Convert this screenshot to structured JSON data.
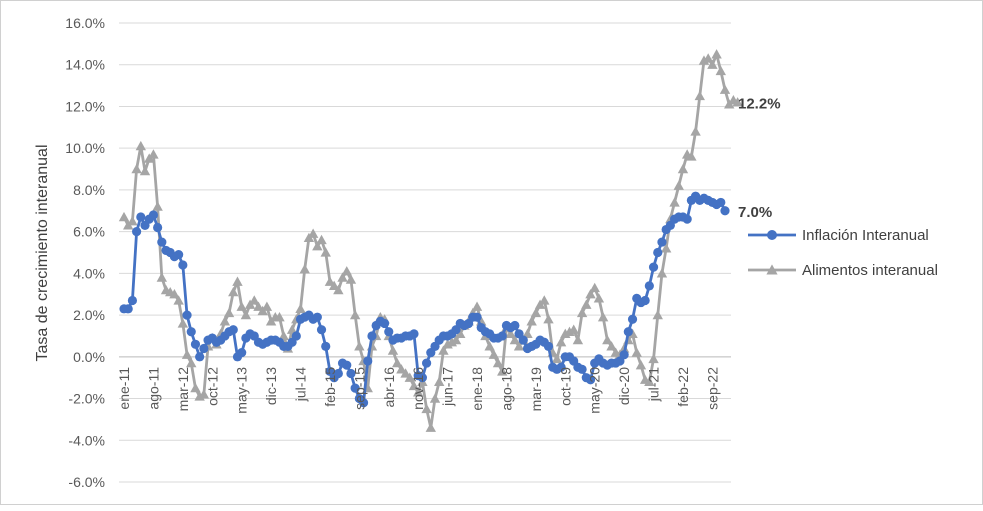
{
  "chart_data": {
    "type": "line",
    "title": "",
    "xlabel": "",
    "ylabel": "Tasa de crecimiento interanual",
    "ylim": [
      -0.06,
      0.16
    ],
    "yticks": [
      "16.0%",
      "14.0%",
      "12.0%",
      "10.0%",
      "8.0%",
      "6.0%",
      "4.0%",
      "2.0%",
      "0.0%",
      "-2.0%",
      "-4.0%",
      "-6.0%"
    ],
    "x_tick_labels": [
      {
        "index": 0,
        "label": "ene-11"
      },
      {
        "index": 7,
        "label": "ago-11"
      },
      {
        "index": 14,
        "label": "mar-12"
      },
      {
        "index": 21,
        "label": "oct-12"
      },
      {
        "index": 28,
        "label": "may-13"
      },
      {
        "index": 35,
        "label": "dic-13"
      },
      {
        "index": 42,
        "label": "jul-14"
      },
      {
        "index": 49,
        "label": "feb-15"
      },
      {
        "index": 56,
        "label": "sep-15"
      },
      {
        "index": 63,
        "label": "abr-16"
      },
      {
        "index": 70,
        "label": "nov-16"
      },
      {
        "index": 77,
        "label": "jun-17"
      },
      {
        "index": 84,
        "label": "ene-18"
      },
      {
        "index": 91,
        "label": "ago-18"
      },
      {
        "index": 98,
        "label": "mar-19"
      },
      {
        "index": 105,
        "label": "oct-19"
      },
      {
        "index": 112,
        "label": "may-20"
      },
      {
        "index": 119,
        "label": "dic-20"
      },
      {
        "index": 126,
        "label": "jul-21"
      },
      {
        "index": 133,
        "label": "feb-22"
      },
      {
        "index": 140,
        "label": "sep-22"
      }
    ],
    "grid": true,
    "legend_position": "right",
    "series": [
      {
        "name": "Inflación Interanual",
        "color": "#4472c4",
        "marker": "circle",
        "end_label": "7.0%",
        "values": [
          0.023,
          0.023,
          0.027,
          0.06,
          0.067,
          0.063,
          0.066,
          0.068,
          0.062,
          0.055,
          0.051,
          0.05,
          0.048,
          0.049,
          0.044,
          0.02,
          0.012,
          0.006,
          0.0,
          0.004,
          0.008,
          0.009,
          0.007,
          0.008,
          0.01,
          0.012,
          0.013,
          0.0,
          0.002,
          0.009,
          0.011,
          0.01,
          0.007,
          0.006,
          0.007,
          0.008,
          0.008,
          0.007,
          0.005,
          0.005,
          0.007,
          0.01,
          0.018,
          0.019,
          0.02,
          0.018,
          0.019,
          0.013,
          0.005,
          -0.007,
          -0.01,
          -0.008,
          -0.003,
          -0.004,
          -0.008,
          -0.015,
          -0.02,
          -0.022,
          -0.002,
          0.01,
          0.015,
          0.017,
          0.016,
          0.012,
          0.008,
          0.009,
          0.009,
          0.01,
          0.01,
          0.011,
          -0.009,
          -0.01,
          -0.003,
          0.002,
          0.005,
          0.008,
          0.01,
          0.01,
          0.011,
          0.013,
          0.016,
          0.015,
          0.016,
          0.019,
          0.019,
          0.014,
          0.012,
          0.011,
          0.009,
          0.009,
          0.01,
          0.015,
          0.014,
          0.015,
          0.011,
          0.008,
          0.004,
          0.005,
          0.006,
          0.008,
          0.007,
          0.005,
          -0.005,
          -0.006,
          -0.005,
          0.0,
          0.0,
          -0.002,
          -0.005,
          -0.006,
          -0.01,
          -0.011,
          -0.003,
          -0.001,
          -0.003,
          -0.004,
          -0.003,
          -0.003,
          -0.002,
          0.001,
          0.012,
          0.018,
          0.028,
          0.026,
          0.027,
          0.034,
          0.043,
          0.05,
          0.055,
          0.061,
          0.063,
          0.066,
          0.067,
          0.067,
          0.066,
          0.075,
          0.077,
          0.075,
          0.076,
          0.075,
          0.074,
          0.073,
          0.074,
          0.07
        ]
      },
      {
        "name": "Alimentos interanual",
        "color": "#a5a5a5",
        "marker": "triangle",
        "end_label": "12.2%",
        "values": [
          0.067,
          0.063,
          0.065,
          0.09,
          0.101,
          0.089,
          0.095,
          0.097,
          0.072,
          0.038,
          0.032,
          0.031,
          0.03,
          0.027,
          0.016,
          0.001,
          -0.003,
          -0.015,
          -0.019,
          -0.018,
          0.005,
          0.009,
          0.006,
          0.011,
          0.017,
          0.021,
          0.031,
          0.036,
          0.024,
          0.02,
          0.025,
          0.027,
          0.024,
          0.022,
          0.024,
          0.017,
          0.019,
          0.019,
          0.01,
          0.004,
          0.013,
          0.018,
          0.023,
          0.042,
          0.057,
          0.059,
          0.053,
          0.056,
          0.05,
          0.036,
          0.034,
          0.032,
          0.038,
          0.041,
          0.037,
          0.02,
          0.005,
          -0.002,
          -0.015,
          0.005,
          0.01,
          0.019,
          0.018,
          0.01,
          0.003,
          -0.003,
          -0.006,
          -0.008,
          -0.01,
          -0.014,
          -0.017,
          -0.012,
          -0.025,
          -0.034,
          -0.02,
          -0.012,
          0.003,
          0.006,
          0.007,
          0.008,
          0.011,
          0.015,
          0.017,
          0.021,
          0.024,
          0.017,
          0.01,
          0.005,
          0.001,
          -0.003,
          -0.007,
          0.014,
          0.011,
          0.008,
          0.005,
          0.008,
          0.011,
          0.017,
          0.021,
          0.025,
          0.027,
          0.018,
          0.002,
          -0.001,
          0.007,
          0.011,
          0.012,
          0.013,
          0.008,
          0.021,
          0.025,
          0.03,
          0.033,
          0.028,
          0.019,
          0.008,
          0.005,
          0.002,
          0.001,
          0.004,
          0.008,
          0.011,
          0.002,
          -0.004,
          -0.011,
          -0.012,
          -0.001,
          0.02,
          0.04,
          0.052,
          0.066,
          0.074,
          0.082,
          0.09,
          0.097,
          0.096,
          0.108,
          0.125,
          0.142,
          0.143,
          0.14,
          0.145,
          0.137,
          0.128,
          0.121,
          0.123,
          0.122
        ]
      }
    ]
  }
}
